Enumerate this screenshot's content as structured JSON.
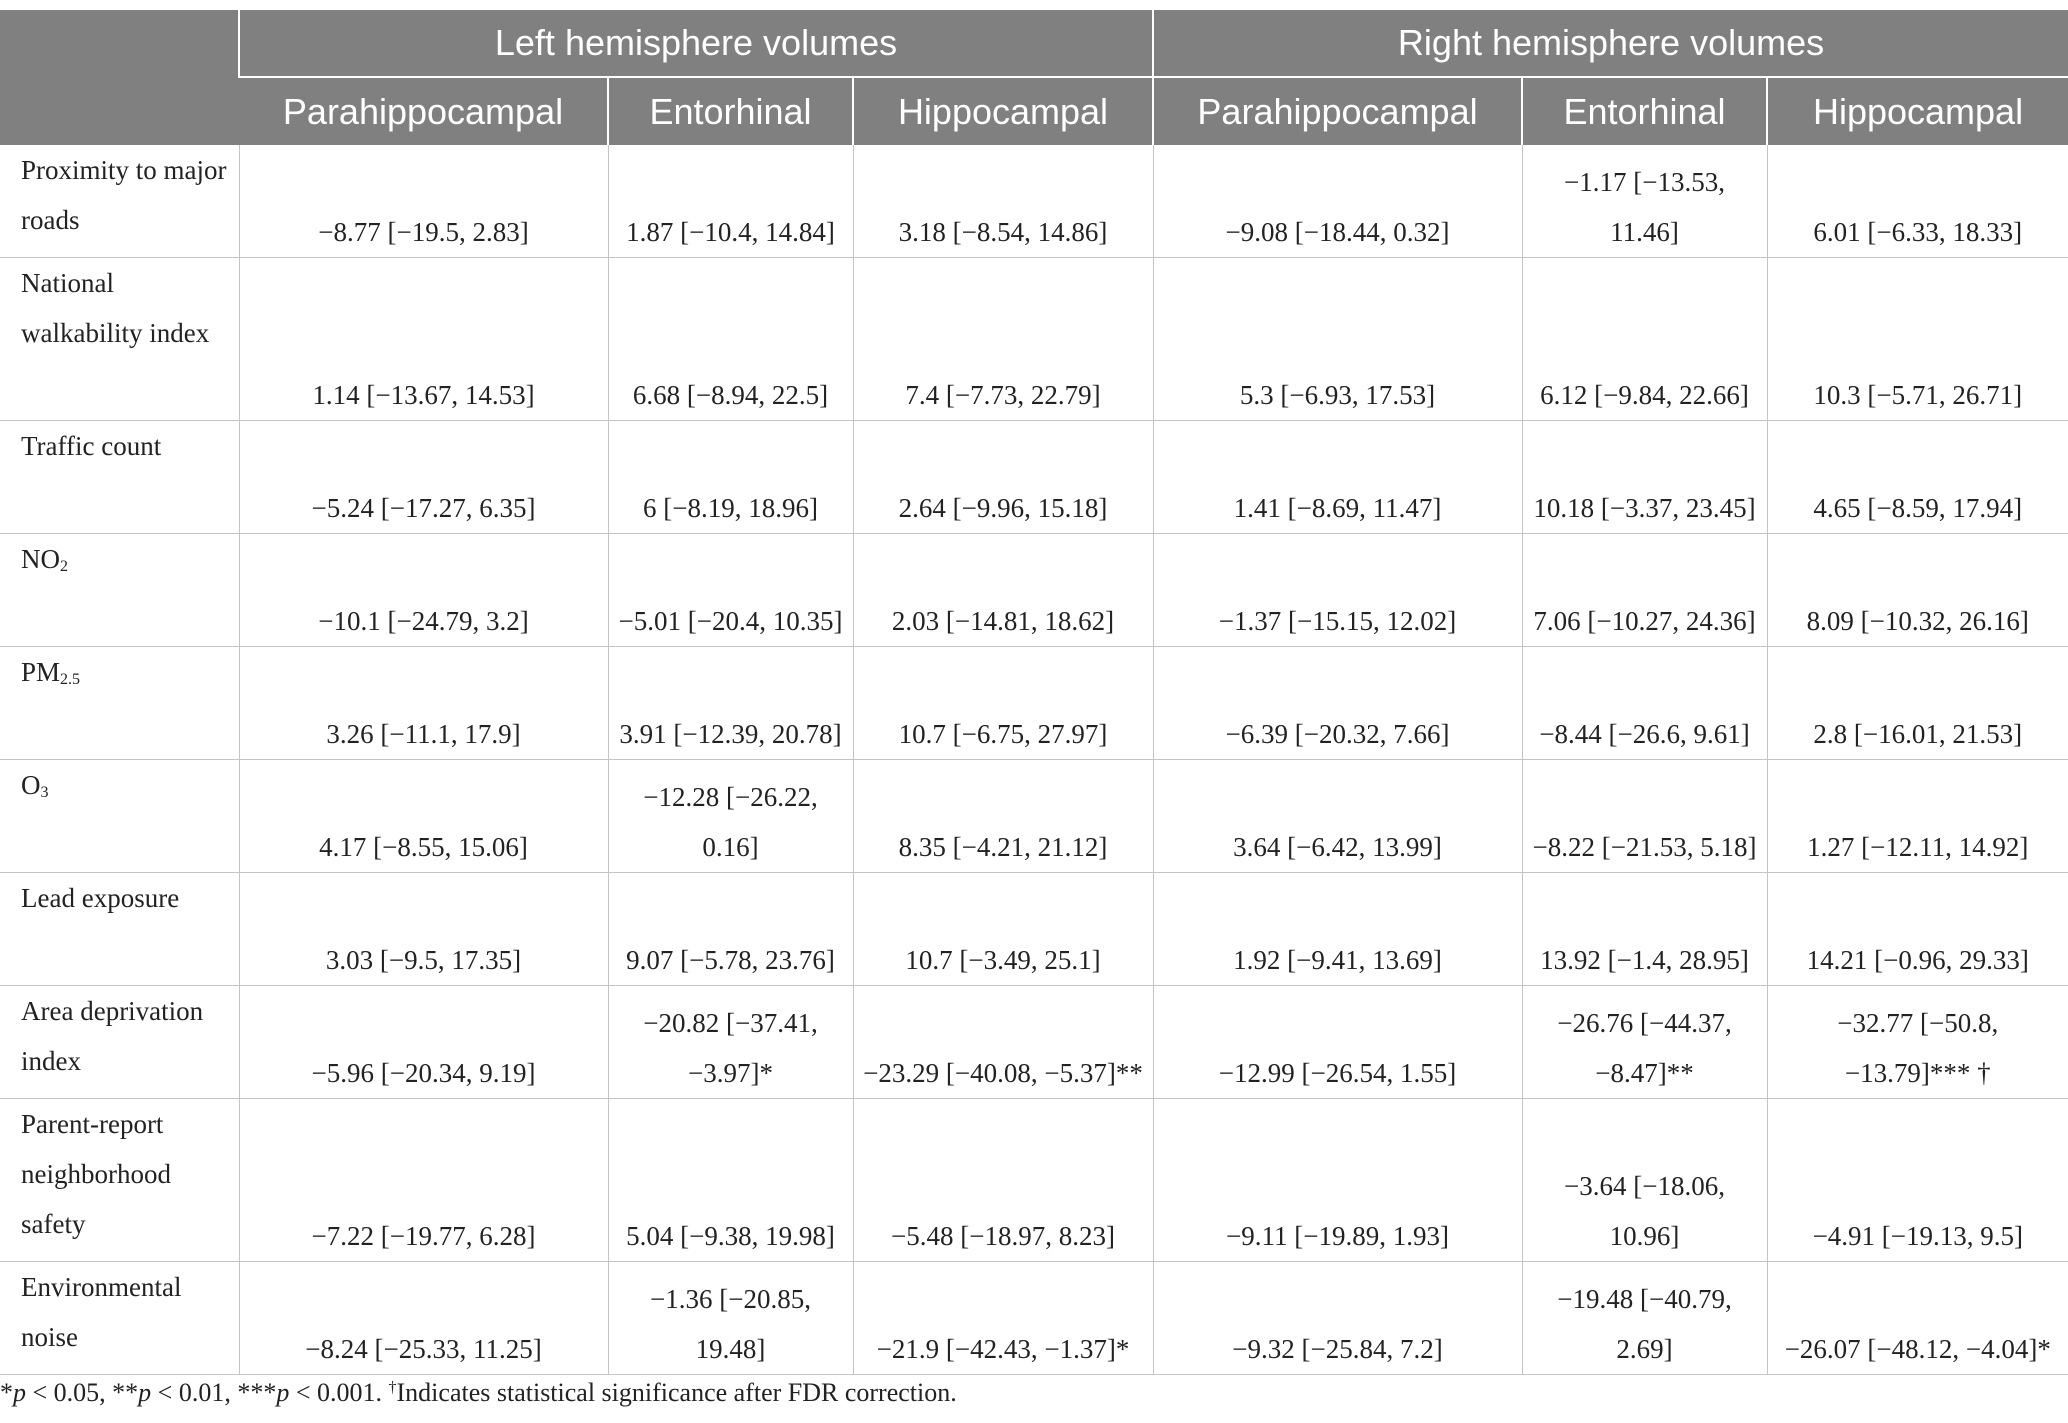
{
  "header": {
    "corner": "",
    "groups": [
      "Left hemisphere volumes",
      "Right hemisphere volumes"
    ],
    "columns": [
      "Parahippocampal",
      "Entorhinal",
      "Hippocampal",
      "Parahippocampal",
      "Entorhinal",
      "Hippocampal"
    ]
  },
  "rows": [
    {
      "label": "Proximity to major roads",
      "cells": [
        "−8.77 [−19.5, 2.83]",
        "1.87 [−10.4, 14.84]",
        "3.18 [−8.54, 14.86]",
        "−9.08 [−18.44, 0.32]",
        "−1.17 [−13.53, 11.46]",
        "6.01 [−6.33, 18.33]"
      ]
    },
    {
      "label": "National walkability index",
      "cells": [
        "1.14 [−13.67, 14.53]",
        "6.68 [−8.94, 22.5]",
        "7.4 [−7.73, 22.79]",
        "5.3 [−6.93, 17.53]",
        "6.12 [−9.84, 22.66]",
        "10.3 [−5.71, 26.71]"
      ]
    },
    {
      "label": "Traffic count",
      "cells": [
        "−5.24 [−17.27, 6.35]",
        "6 [−8.19, 18.96]",
        "2.64 [−9.96, 15.18]",
        "1.41 [−8.69, 11.47]",
        "10.18 [−3.37, 23.45]",
        "4.65 [−8.59, 17.94]"
      ]
    },
    {
      "label_main": "NO",
      "label_sub": "2",
      "cells": [
        "−10.1 [−24.79, 3.2]",
        "−5.01 [−20.4, 10.35]",
        "2.03 [−14.81, 18.62]",
        "−1.37 [−15.15, 12.02]",
        "7.06 [−10.27, 24.36]",
        "8.09 [−10.32, 26.16]"
      ]
    },
    {
      "label_main": "PM",
      "label_sub": "2.5",
      "cells": [
        "3.26 [−11.1, 17.9]",
        "3.91 [−12.39, 20.78]",
        "10.7 [−6.75, 27.97]",
        "−6.39 [−20.32, 7.66]",
        "−8.44 [−26.6, 9.61]",
        "2.8 [−16.01, 21.53]"
      ]
    },
    {
      "label_main": "O",
      "label_sub": "3",
      "cells": [
        "4.17 [−8.55, 15.06]",
        "−12.28 [−26.22, 0.16]",
        "8.35 [−4.21, 21.12]",
        "3.64 [−6.42, 13.99]",
        "−8.22 [−21.53, 5.18]",
        "1.27 [−12.11, 14.92]"
      ]
    },
    {
      "label": "Lead exposure",
      "cells": [
        "3.03 [−9.5, 17.35]",
        "9.07 [−5.78, 23.76]",
        "10.7 [−3.49, 25.1]",
        "1.92 [−9.41, 13.69]",
        "13.92 [−1.4, 28.95]",
        "14.21 [−0.96, 29.33]"
      ]
    },
    {
      "label": "Area deprivation index",
      "cells": [
        "−5.96 [−20.34, 9.19]",
        "−20.82 [−37.41, −3.97]*",
        "−23.29 [−40.08, −5.37]**",
        "−12.99 [−26.54, 1.55]",
        "−26.76 [−44.37, −8.47]**",
        "−32.77 [−50.8, −13.79]*** †"
      ]
    },
    {
      "label": "Parent-report neighborhood safety",
      "cells": [
        "−7.22 [−19.77, 6.28]",
        "5.04 [−9.38, 19.98]",
        "−5.48 [−18.97, 8.23]",
        "−9.11 [−19.89, 1.93]",
        "−3.64 [−18.06, 10.96]",
        "−4.91 [−19.13, 9.5]"
      ]
    },
    {
      "label": "Environmental noise",
      "cells": [
        "−8.24 [−25.33, 11.25]",
        "−1.36 [−20.85, 19.48]",
        "−21.9 [−42.43, −1.37]*",
        "−9.32 [−25.84, 7.2]",
        "−19.48 [−40.79, 2.69]",
        "−26.07 [−48.12, −4.04]*"
      ]
    }
  ],
  "footnote": {
    "p1": "p",
    "t1": " < 0.05, **",
    "p2": "p",
    "t2": " < 0.01, ***",
    "p3": "p",
    "t3": " < 0.001. ",
    "dagger": "†",
    "t4": "Indicates statistical significance after FDR correction.",
    "lead": "*"
  }
}
